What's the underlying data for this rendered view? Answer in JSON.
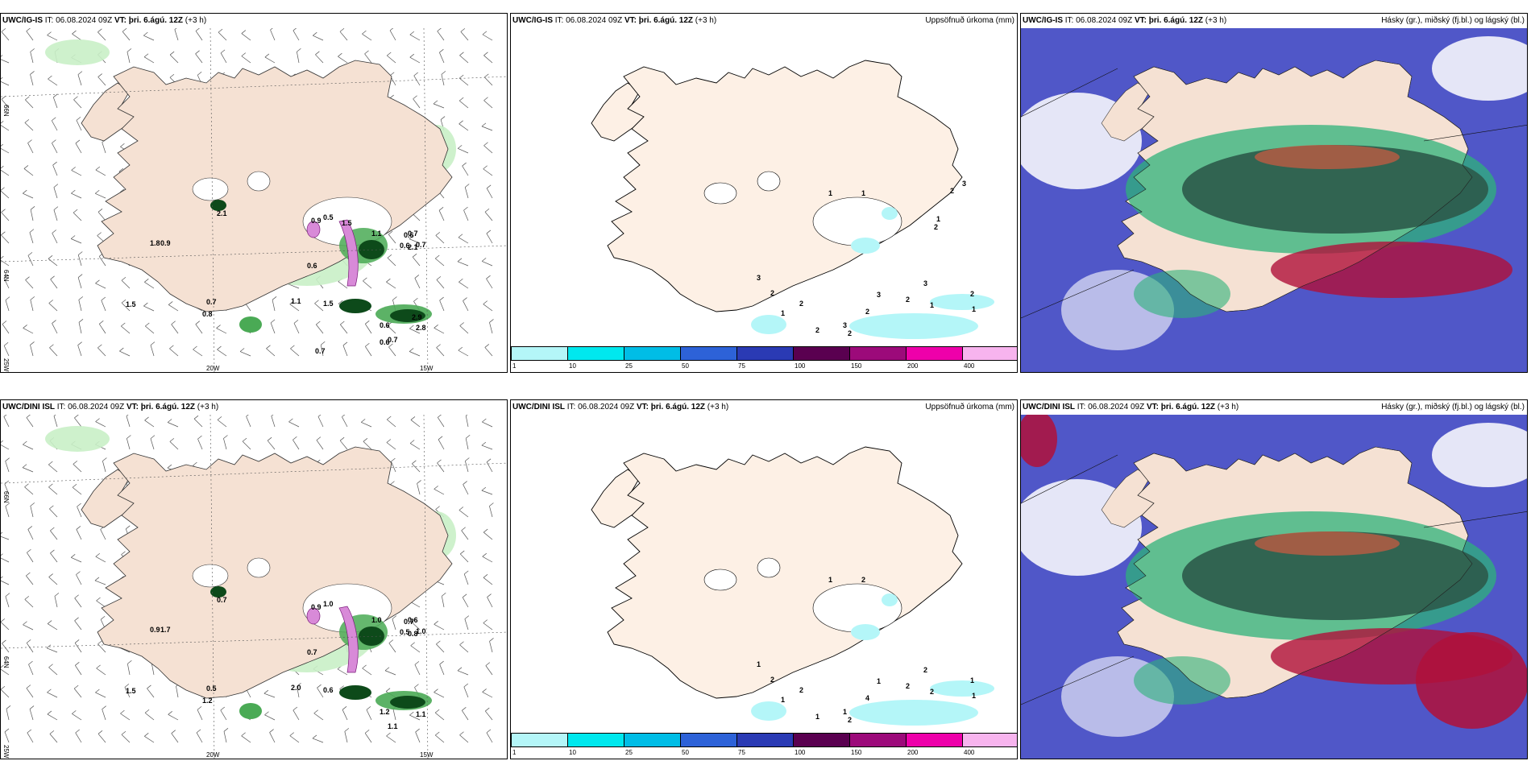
{
  "header_common": {
    "it_label": "IT:",
    "it_value": "06.08.2024 09Z",
    "vt_label": "VT:",
    "vt_value": "þri. 6.ágú. 12Z",
    "lead": "(+3 h)"
  },
  "rows": [
    {
      "model": "UWC/IG-IS"
    },
    {
      "model": "UWC/DINI ISL"
    }
  ],
  "precip_title": "Uppsöfnuð úrkoma (mm)",
  "cloud_title": "Hásky (gr.), miðský (fj.bl.) og lágský (bl.)",
  "axes": {
    "lon_20": "20W",
    "lon_15": "15W",
    "lon_25": "25W",
    "lat_66": "66N",
    "lat_64": "64N"
  },
  "colorbar": {
    "ticks": [
      "1",
      "10",
      "25",
      "50",
      "75",
      "100",
      "150",
      "200",
      "400"
    ],
    "colors": [
      "#b4f6f8",
      "#00e8ee",
      "#00bde6",
      "#2d62d8",
      "#2a3ab4",
      "#5a0050",
      "#9c0a7a",
      "#ee00aa",
      "#f7b4ee"
    ]
  },
  "colors": {
    "land": "#f5e1d3",
    "land_light": "#fdf0e5",
    "precip_light_green": "#c9f0c6",
    "precip_green": "#4aaa55",
    "precip_dark_green": "#0d4a1a",
    "precip_pink": "#d88ad8",
    "cloud_blue": "#5057c8",
    "cloud_green": "#2db27a",
    "cloud_darkgreen": "#2c5a4a",
    "cloud_red": "#b0103a"
  },
  "labels_row1_wind": [
    "1.8",
    "0.9",
    "2.1",
    "0.5",
    "0.9",
    "0.6",
    "1.1",
    "0.7",
    "0.6",
    "2.1",
    "0.7",
    "0.6",
    "0.7",
    "0.8",
    "1.5",
    "1.1",
    "0.7",
    "0.6",
    "1.5",
    "2.8",
    "0.6",
    "0.7",
    "2.9",
    "1.5"
  ],
  "labels_row2_wind": [
    "0.9",
    "1.7",
    "0.7",
    "1.0",
    "0.9",
    "0.7",
    "1.0",
    "0.6",
    "0.5",
    "0.8",
    "1.0",
    "0.7",
    "0.5",
    "1.2",
    "1.5",
    "2.0",
    "1.1",
    "1.2",
    "0.6",
    "1.1"
  ],
  "labels_row1_precip": [
    "1",
    "1",
    "2",
    "1",
    "3",
    "2",
    "1",
    "3",
    "2",
    "1",
    "2",
    "2",
    "3",
    "3",
    "2",
    "2",
    "1",
    "2",
    "2",
    "3"
  ],
  "labels_row2_precip": [
    "1",
    "2",
    "2",
    "1",
    "1",
    "2",
    "2",
    "2",
    "1",
    "1",
    "2",
    "4",
    "1",
    "1",
    "1",
    "2"
  ]
}
